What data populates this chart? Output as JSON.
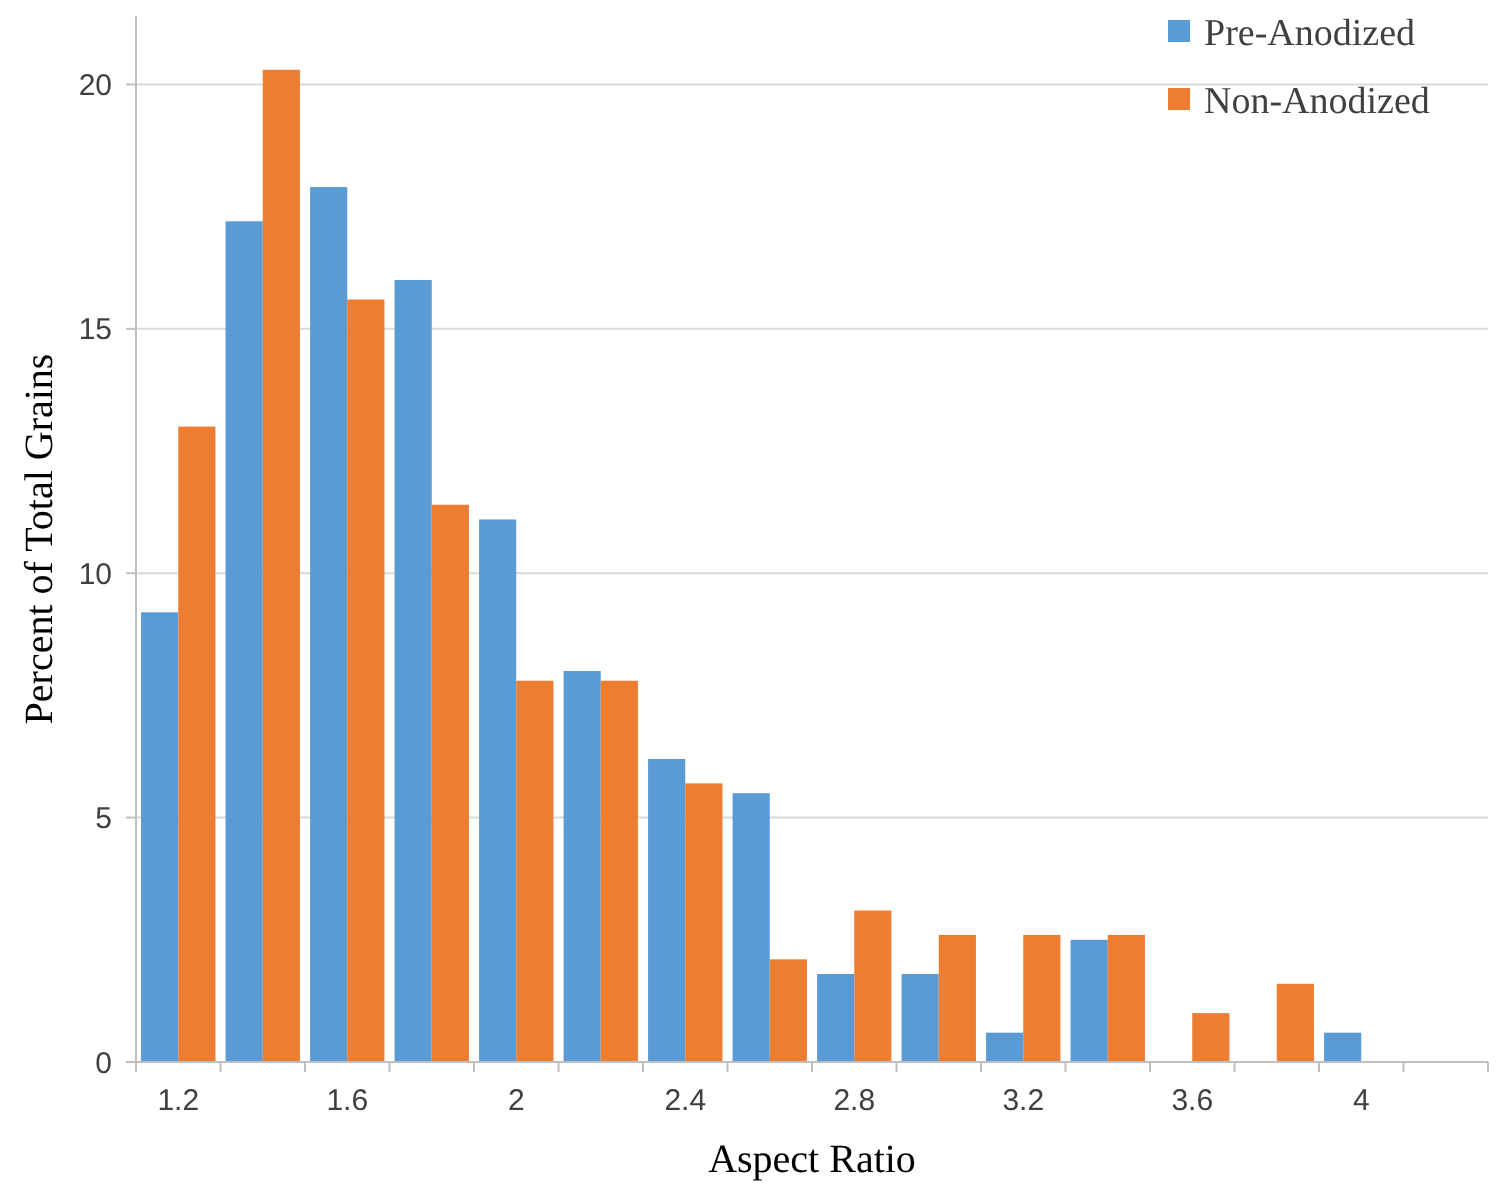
{
  "chart_data": {
    "type": "bar",
    "xlabel": "Aspect Ratio",
    "ylabel": "Percent of Total Grains",
    "categories": [
      "1.2",
      null,
      "1.6",
      null,
      "2",
      null,
      "2.4",
      null,
      "2.8",
      null,
      "3.2",
      null,
      "3.6",
      null,
      "4",
      null
    ],
    "series": [
      {
        "name": "Pre-Anodized",
        "color": "#5b9bd5",
        "values": [
          9.2,
          17.2,
          17.9,
          16.0,
          11.1,
          8.0,
          6.2,
          5.5,
          1.8,
          1.8,
          0.6,
          2.5,
          0,
          0,
          0.6,
          0
        ]
      },
      {
        "name": "Non-Anodized",
        "color": "#ed7d31",
        "values": [
          13.0,
          20.3,
          15.6,
          11.4,
          7.8,
          7.8,
          5.7,
          2.1,
          3.1,
          2.6,
          2.6,
          2.6,
          1.0,
          1.6,
          0,
          0
        ]
      }
    ],
    "ylim": [
      0,
      21.4
    ],
    "yticks": [
      0,
      5,
      10,
      15,
      20
    ],
    "grid": "y",
    "legend": "top right"
  }
}
